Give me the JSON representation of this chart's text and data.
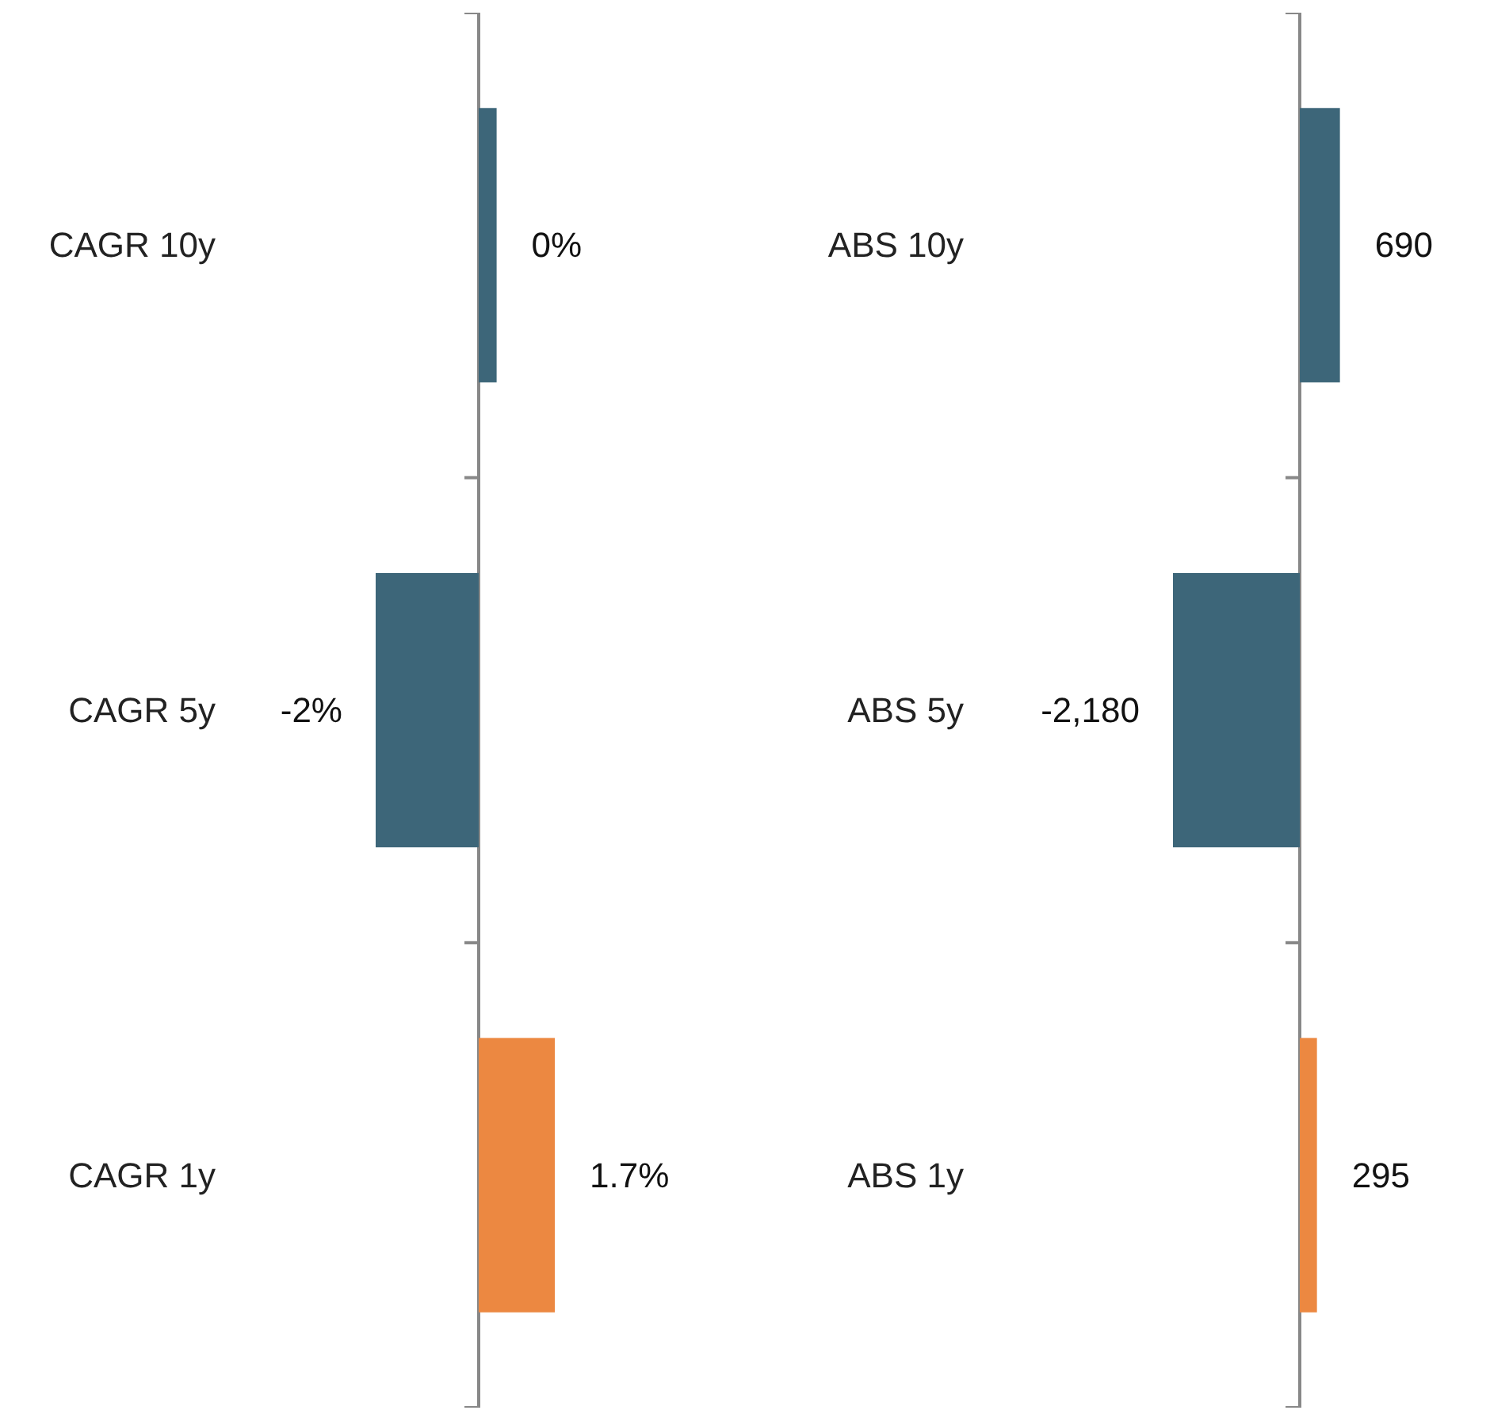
{
  "chart_data": [
    {
      "type": "bar",
      "orientation": "horizontal",
      "categories": [
        "CAGR 10y",
        "CAGR 5y",
        "CAGR 1y"
      ],
      "values": [
        0.4,
        -2.3,
        1.7
      ],
      "colors": [
        "#3d6679",
        "#3d6679",
        "#ec8841"
      ],
      "value_labels": [
        "0%",
        "-2%",
        "1.7%"
      ]
    },
    {
      "type": "bar",
      "orientation": "horizontal",
      "categories": [
        "ABS 10y",
        "ABS 5y",
        "ABS 1y"
      ],
      "values": [
        690,
        -2180,
        295
      ],
      "colors": [
        "#3d6679",
        "#3d6679",
        "#ec8841"
      ],
      "value_labels": [
        "690",
        "-2,180",
        "295"
      ]
    }
  ]
}
